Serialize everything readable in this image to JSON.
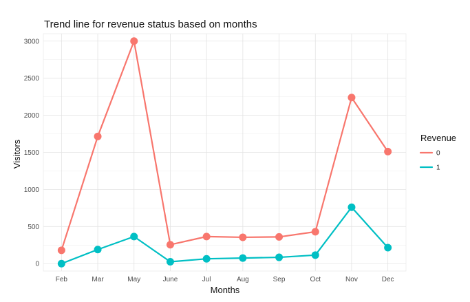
{
  "chart_data": {
    "type": "line",
    "title": "Trend line for revenue status based on months",
    "xlabel": "Months",
    "ylabel": "Visitors",
    "categories": [
      "Feb",
      "Mar",
      "May",
      "June",
      "Jul",
      "Aug",
      "Sep",
      "Oct",
      "Nov",
      "Dec"
    ],
    "series": [
      {
        "name": "0",
        "color": "#F8766D",
        "values": [
          180,
          1715,
          3000,
          255,
          365,
          355,
          360,
          430,
          2240,
          1510
        ]
      },
      {
        "name": "1",
        "color": "#00BFC4",
        "values": [
          0,
          190,
          365,
          25,
          65,
          75,
          85,
          115,
          760,
          215
        ]
      }
    ],
    "yticks": [
      0,
      500,
      1000,
      1500,
      2000,
      2500,
      3000
    ],
    "ylim": [
      -100,
      3100
    ],
    "grid": true,
    "legend": {
      "title": "Revenue",
      "position": "right"
    }
  }
}
